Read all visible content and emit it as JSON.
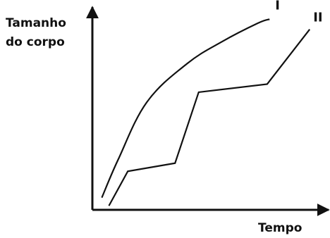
{
  "chart_data": {
    "type": "line",
    "ylabel_lines": [
      "Tamanho",
      "do corpo"
    ],
    "xlabel": "Tempo",
    "grid": false,
    "xlim": [
      0,
      100
    ],
    "ylim": [
      0,
      100
    ],
    "series": [
      {
        "name": "I",
        "line_style": "smooth curve",
        "color": "#111111",
        "points": [
          [
            4,
            6
          ],
          [
            11,
            25
          ],
          [
            23,
            53
          ],
          [
            40,
            72
          ],
          [
            55,
            83
          ],
          [
            70,
            92
          ],
          [
            75,
            94
          ]
        ]
      },
      {
        "name": "II",
        "line_style": "segmented",
        "color": "#111111",
        "points": [
          [
            7,
            2
          ],
          [
            15,
            19
          ],
          [
            35,
            23
          ],
          [
            45,
            58
          ],
          [
            74,
            62
          ],
          [
            92,
            89
          ]
        ]
      }
    ]
  }
}
